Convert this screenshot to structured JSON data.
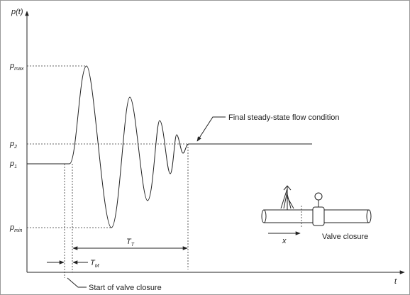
{
  "axes": {
    "y_label": "p(t)",
    "x_label": "t"
  },
  "levels": [
    {
      "base": "p",
      "sub": "max"
    },
    {
      "base": "p",
      "sub": "2"
    },
    {
      "base": "p",
      "sub": "1"
    },
    {
      "base": "p",
      "sub": "min"
    }
  ],
  "intervals": [
    {
      "base": "T",
      "sub": "T"
    },
    {
      "base": "T",
      "sub": "M"
    }
  ],
  "annotations": {
    "final": "Final steady-state flow condition",
    "start": "Start of valve closure"
  },
  "inset": {
    "x_label": "x",
    "caption": "Valve closure"
  }
}
